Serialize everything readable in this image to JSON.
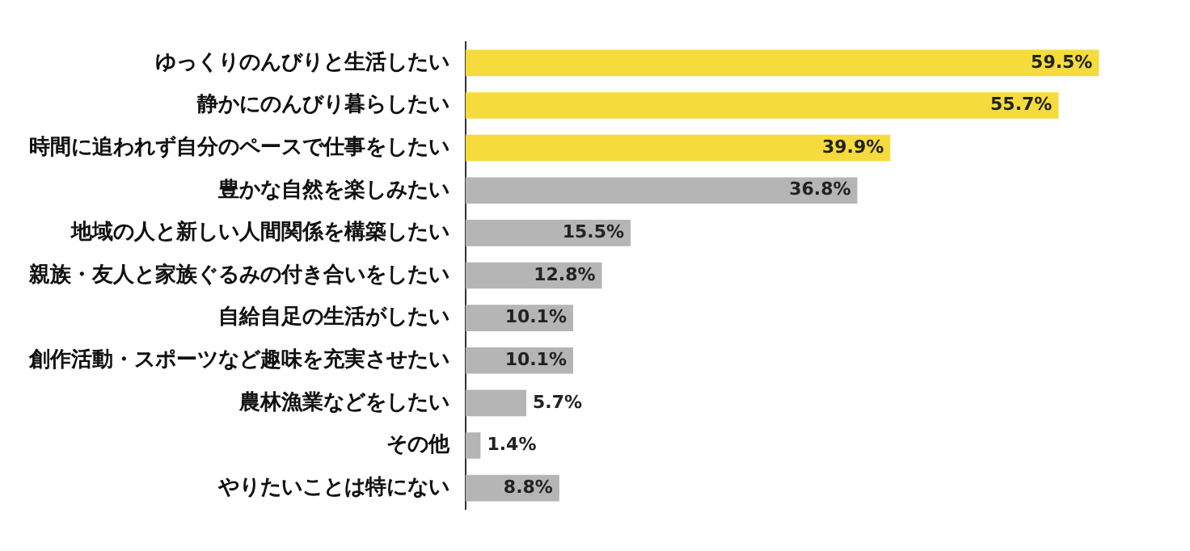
{
  "chart_data": {
    "type": "bar",
    "orientation": "horizontal",
    "categories": [
      "ゆっくりのんびりと生活したい",
      "静かにのんびり暮らしたい",
      "時間に追われず自分のペースで仕事をしたい",
      "豊かな自然を楽しみたい",
      "地域の人と新しい人間関係を構築したい",
      "親族・友人と家族ぐるみの付き合いをしたい",
      "自給自足の生活がしたい",
      "創作活動・スポーツなど趣味を充実させたい",
      "農林漁業などをしたい",
      "その他",
      "やりたいことは特にない"
    ],
    "values": [
      59.5,
      55.7,
      39.9,
      36.8,
      15.5,
      12.8,
      10.1,
      10.1,
      5.7,
      1.4,
      8.8
    ],
    "colors": [
      "#f5dc3c",
      "#f5dc3c",
      "#f5dc3c",
      "#b5b5b5",
      "#b5b5b5",
      "#b5b5b5",
      "#b5b5b5",
      "#b5b5b5",
      "#b5b5b5",
      "#b5b5b5",
      "#b5b5b5"
    ],
    "value_labels": [
      "59.5%",
      "55.7%",
      "39.9%",
      "36.8%",
      "15.5%",
      "12.8%",
      "10.1%",
      "10.1%",
      "5.7%",
      "1.4%",
      "8.8%"
    ]
  }
}
